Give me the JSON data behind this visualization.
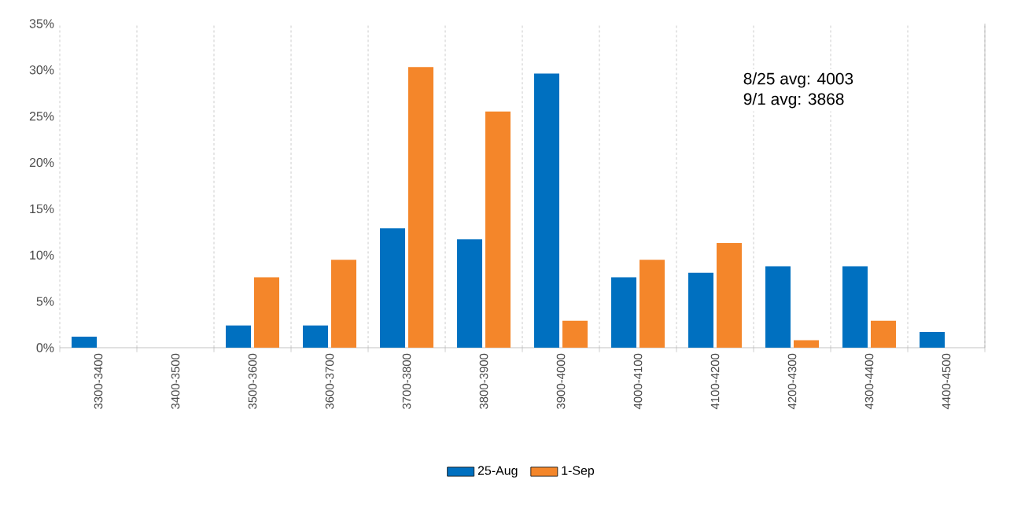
{
  "chart_data": {
    "type": "bar",
    "categories": [
      "3300-3400",
      "3400-3500",
      "3500-3600",
      "3600-3700",
      "3700-3800",
      "3800-3900",
      "3900-4000",
      "4000-4100",
      "4100-4200",
      "4200-4300",
      "4300-4400",
      "4400-4500"
    ],
    "series": [
      {
        "name": "25-Aug",
        "color": "#0070c0",
        "values": [
          1.2,
          0,
          2.4,
          2.4,
          12.9,
          11.7,
          29.6,
          7.6,
          8.1,
          8.8,
          8.8,
          1.7
        ]
      },
      {
        "name": "1-Sep",
        "color": "#f4862a",
        "values": [
          0,
          0,
          7.6,
          9.5,
          30.3,
          25.5,
          2.9,
          9.5,
          11.3,
          0.8,
          2.9,
          0
        ]
      }
    ],
    "ylim": [
      0,
      35
    ],
    "yticks": [
      {
        "value": 0,
        "label": "0%"
      },
      {
        "value": 5,
        "label": "5%"
      },
      {
        "value": 10,
        "label": "10%"
      },
      {
        "value": 15,
        "label": "15%"
      },
      {
        "value": 20,
        "label": "20%"
      },
      {
        "value": 25,
        "label": "25%"
      },
      {
        "value": 30,
        "label": "30%"
      },
      {
        "value": 35,
        "label": "35%"
      }
    ],
    "annotations": [
      "8/25 avg:  4003",
      "9/1 avg:    3868"
    ],
    "grid": "x",
    "legend": "bottom"
  }
}
